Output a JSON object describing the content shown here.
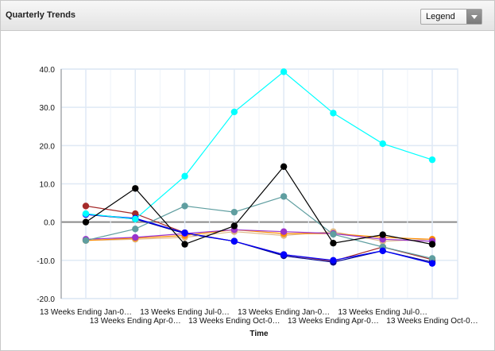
{
  "header": {
    "title": "Quarterly Trends",
    "legend_button_label": "Legend"
  },
  "chart_data": {
    "type": "line",
    "title": "Quarterly Trends",
    "xlabel": "Time",
    "ylabel": "",
    "ylim": [
      -20,
      40
    ],
    "yticks": [
      40,
      30,
      20,
      10,
      0,
      -10,
      -20
    ],
    "ytick_labels": [
      "40.0",
      "30.0",
      "20.0",
      "10.0",
      "0.0",
      "-10.0",
      "-20.0"
    ],
    "grid": true,
    "legend": "collapsed dropdown top-right",
    "categories": [
      "13 Weeks Ending Jan-0…",
      "13 Weeks Ending Apr-0…",
      "13 Weeks Ending Jul-0…",
      "13 Weeks Ending Oct-0…",
      "13 Weeks Ending Jan-0…",
      "13 Weeks Ending Apr-0…",
      "13 Weeks Ending Jul-0…",
      "13 Weeks Ending Oct-0…"
    ],
    "series": [
      {
        "color": "#a52a2a",
        "values": [
          4.2,
          2.2,
          -2.8,
          -5.0,
          -8.5,
          -10.2,
          -6.5,
          -9.8
        ]
      },
      {
        "color": "#00008b",
        "values": [
          2.0,
          0.8,
          -3.0,
          -5.0,
          -8.8,
          -10.5,
          -7.5,
          -10.5
        ]
      },
      {
        "color": "#deb887",
        "values": [
          -4.8,
          -4.5,
          -4.0,
          -2.5,
          -3.5,
          -2.5,
          -5.0,
          -4.5
        ]
      },
      {
        "color": "#ff8c00",
        "values": [
          -4.8,
          -4.2,
          -3.5,
          -2.0,
          -3.0,
          -3.0,
          -4.0,
          -4.5
        ]
      },
      {
        "color": "#9932cc",
        "values": [
          -4.5,
          -4.0,
          -3.0,
          -2.0,
          -2.5,
          -3.0,
          -4.5,
          -5.0
        ]
      },
      {
        "color": "#5f9ea0",
        "values": [
          -4.8,
          -1.8,
          4.2,
          2.6,
          6.7,
          -3.2,
          -6.5,
          -9.5
        ]
      },
      {
        "color": "#0000ff",
        "values": [
          2.0,
          1.0,
          -2.8,
          -5.0,
          -8.5,
          -10.0,
          -7.5,
          -10.8
        ]
      },
      {
        "color": "#00ffff",
        "values": [
          2.2,
          0.8,
          12.0,
          28.8,
          39.3,
          28.5,
          20.5,
          16.3
        ]
      },
      {
        "color": "#000000",
        "values": [
          0.0,
          8.8,
          -5.8,
          -1.0,
          14.5,
          -5.5,
          -3.3,
          -5.8
        ]
      }
    ]
  }
}
